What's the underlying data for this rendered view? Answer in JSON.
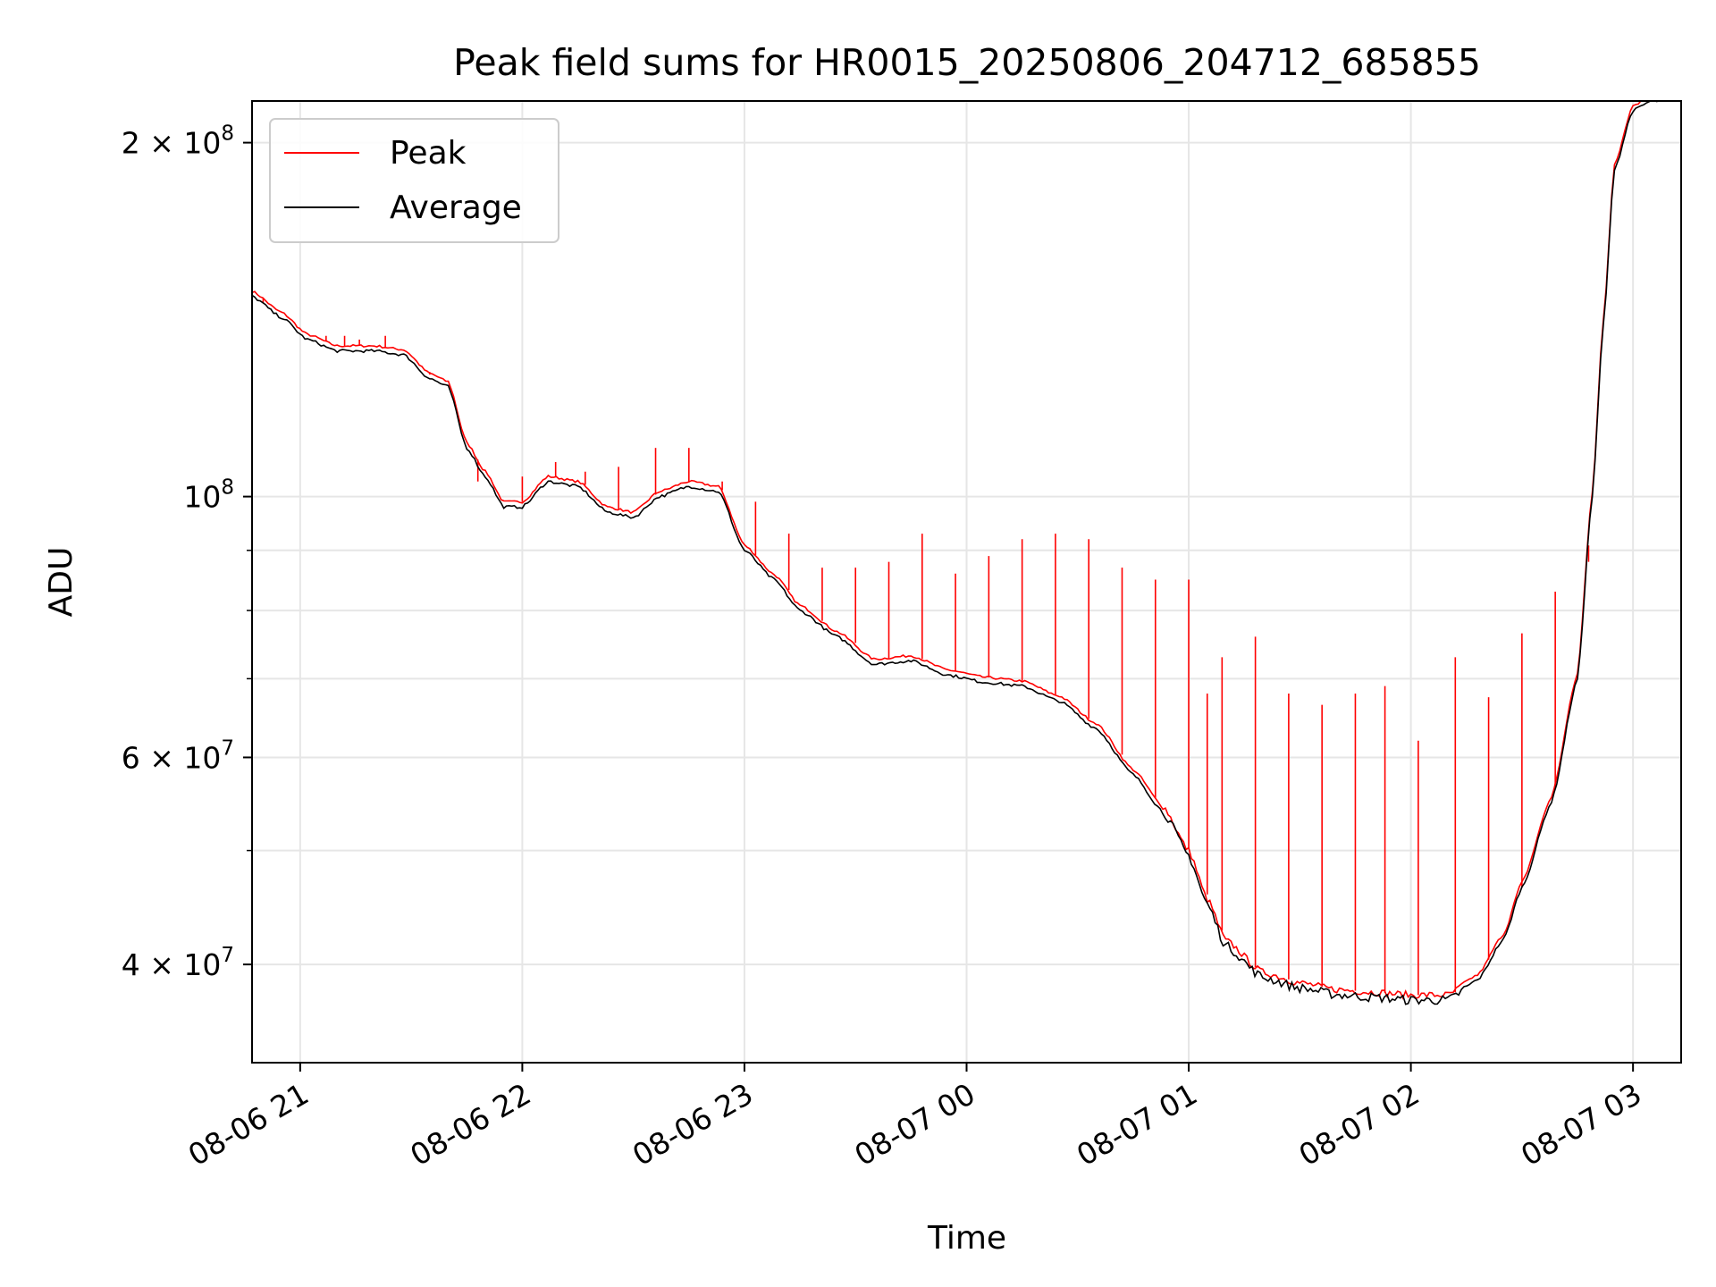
{
  "chart_data": {
    "type": "line",
    "title": "Peak field sums for HR0015_20250806_204712_685855",
    "xlabel": "Time",
    "ylabel": "ADU",
    "yscale": "log",
    "xlim": [
      "2025-08-06 20:47",
      "2025-08-07 03:13"
    ],
    "ylim": [
      33000000,
      217000000
    ],
    "grid": true,
    "legend_position": "upper-left",
    "x_ticks": [
      {
        "t": "2025-08-06 21:00",
        "label": "08-06 21"
      },
      {
        "t": "2025-08-06 22:00",
        "label": "08-06 22"
      },
      {
        "t": "2025-08-06 23:00",
        "label": "08-06 23"
      },
      {
        "t": "2025-08-07 00:00",
        "label": "08-07 00"
      },
      {
        "t": "2025-08-07 01:00",
        "label": "08-07 01"
      },
      {
        "t": "2025-08-07 02:00",
        "label": "08-07 02"
      },
      {
        "t": "2025-08-07 03:00",
        "label": "08-07 03"
      }
    ],
    "y_major_ticks": [
      {
        "value": 40000000,
        "mantissa": "4",
        "base": "10",
        "exp": "7"
      },
      {
        "value": 60000000,
        "mantissa": "6",
        "base": "10",
        "exp": "7"
      },
      {
        "value": 100000000,
        "mantissa": "",
        "base": "10",
        "exp": "8"
      },
      {
        "value": 200000000,
        "mantissa": "2",
        "base": "10",
        "exp": "8"
      }
    ],
    "y_minor_ticks": [
      50000000,
      70000000,
      80000000,
      90000000
    ],
    "series": [
      {
        "name": "Average",
        "color": "#000000",
        "points": [
          [
            "2025-08-06 20:47",
            148000000
          ],
          [
            "2025-08-06 20:55",
            142000000
          ],
          [
            "2025-08-06 21:02",
            136000000
          ],
          [
            "2025-08-06 21:10",
            133000000
          ],
          [
            "2025-08-06 21:20",
            133000000
          ],
          [
            "2025-08-06 21:28",
            132000000
          ],
          [
            "2025-08-06 21:35",
            126000000
          ],
          [
            "2025-08-06 21:40",
            124000000
          ],
          [
            "2025-08-06 21:45",
            110000000
          ],
          [
            "2025-08-06 21:50",
            104000000
          ],
          [
            "2025-08-06 21:55",
            98000000
          ],
          [
            "2025-08-06 22:00",
            98000000
          ],
          [
            "2025-08-06 22:07",
            103000000
          ],
          [
            "2025-08-06 22:15",
            102000000
          ],
          [
            "2025-08-06 22:23",
            97000000
          ],
          [
            "2025-08-06 22:30",
            96000000
          ],
          [
            "2025-08-06 22:37",
            100000000
          ],
          [
            "2025-08-06 22:45",
            102000000
          ],
          [
            "2025-08-06 22:53",
            101000000
          ],
          [
            "2025-08-06 23:00",
            90000000
          ],
          [
            "2025-08-06 23:08",
            85000000
          ],
          [
            "2025-08-06 23:15",
            80000000
          ],
          [
            "2025-08-06 23:25",
            76000000
          ],
          [
            "2025-08-06 23:35",
            72000000
          ],
          [
            "2025-08-06 23:45",
            72500000
          ],
          [
            "2025-08-06 23:55",
            70500000
          ],
          [
            "2025-08-07 00:05",
            69500000
          ],
          [
            "2025-08-07 00:15",
            69000000
          ],
          [
            "2025-08-07 00:25",
            67000000
          ],
          [
            "2025-08-07 00:35",
            63500000
          ],
          [
            "2025-08-07 00:45",
            58000000
          ],
          [
            "2025-08-07 00:53",
            54000000
          ],
          [
            "2025-08-07 01:00",
            49500000
          ],
          [
            "2025-08-07 01:05",
            45000000
          ],
          [
            "2025-08-07 01:10",
            41500000
          ],
          [
            "2025-08-07 01:20",
            39000000
          ],
          [
            "2025-08-07 01:30",
            38200000
          ],
          [
            "2025-08-07 01:40",
            37700000
          ],
          [
            "2025-08-07 01:50",
            37500000
          ],
          [
            "2025-08-07 02:00",
            37300000
          ],
          [
            "2025-08-07 02:10",
            37300000
          ],
          [
            "2025-08-07 02:18",
            38800000
          ],
          [
            "2025-08-07 02:25",
            42000000
          ],
          [
            "2025-08-07 02:30",
            46500000
          ],
          [
            "2025-08-07 02:38",
            55000000
          ],
          [
            "2025-08-07 02:45",
            70000000
          ],
          [
            "2025-08-07 02:49",
            100000000
          ],
          [
            "2025-08-07 02:52",
            140000000
          ],
          [
            "2025-08-07 02:55",
            190000000
          ],
          [
            "2025-08-07 03:00",
            213000000
          ],
          [
            "2025-08-07 03:05",
            217000000
          ],
          [
            "2025-08-07 03:10",
            217000000
          ]
        ]
      },
      {
        "name": "Peak",
        "color": "#ff0000",
        "baseline_offset": 1.01,
        "spikes": [
          [
            "2025-08-06 20:50",
            146000000
          ],
          [
            "2025-08-06 21:07",
            137000000
          ],
          [
            "2025-08-06 21:12",
            137000000
          ],
          [
            "2025-08-06 21:16",
            136000000
          ],
          [
            "2025-08-06 21:23",
            137000000
          ],
          [
            "2025-08-06 21:35",
            127000000
          ],
          [
            "2025-08-06 21:48",
            103000000
          ],
          [
            "2025-08-06 22:00",
            104000000
          ],
          [
            "2025-08-06 22:09",
            107000000
          ],
          [
            "2025-08-06 22:17",
            105000000
          ],
          [
            "2025-08-06 22:26",
            106000000
          ],
          [
            "2025-08-06 22:36",
            110000000
          ],
          [
            "2025-08-06 22:45",
            110000000
          ],
          [
            "2025-08-06 22:54",
            103000000
          ],
          [
            "2025-08-06 23:03",
            99000000
          ],
          [
            "2025-08-06 23:12",
            93000000
          ],
          [
            "2025-08-06 23:21",
            87000000
          ],
          [
            "2025-08-06 23:30",
            87000000
          ],
          [
            "2025-08-06 23:39",
            88000000
          ],
          [
            "2025-08-06 23:48",
            93000000
          ],
          [
            "2025-08-06 23:57",
            86000000
          ],
          [
            "2025-08-07 00:06",
            89000000
          ],
          [
            "2025-08-07 00:15",
            92000000
          ],
          [
            "2025-08-07 00:24",
            93000000
          ],
          [
            "2025-08-07 00:33",
            92000000
          ],
          [
            "2025-08-07 00:42",
            87000000
          ],
          [
            "2025-08-07 00:51",
            85000000
          ],
          [
            "2025-08-07 01:00",
            85000000
          ],
          [
            "2025-08-07 01:05",
            68000000
          ],
          [
            "2025-08-07 01:09",
            73000000
          ],
          [
            "2025-08-07 01:18",
            76000000
          ],
          [
            "2025-08-07 01:27",
            68000000
          ],
          [
            "2025-08-07 01:36",
            66500000
          ],
          [
            "2025-08-07 01:45",
            68000000
          ],
          [
            "2025-08-07 01:53",
            69000000
          ],
          [
            "2025-08-07 02:02",
            62000000
          ],
          [
            "2025-08-07 02:12",
            73000000
          ],
          [
            "2025-08-07 02:21",
            67500000
          ],
          [
            "2025-08-07 02:30",
            76500000
          ],
          [
            "2025-08-07 02:39",
            83000000
          ],
          [
            "2025-08-07 02:48",
            88000000
          ]
        ]
      }
    ]
  }
}
